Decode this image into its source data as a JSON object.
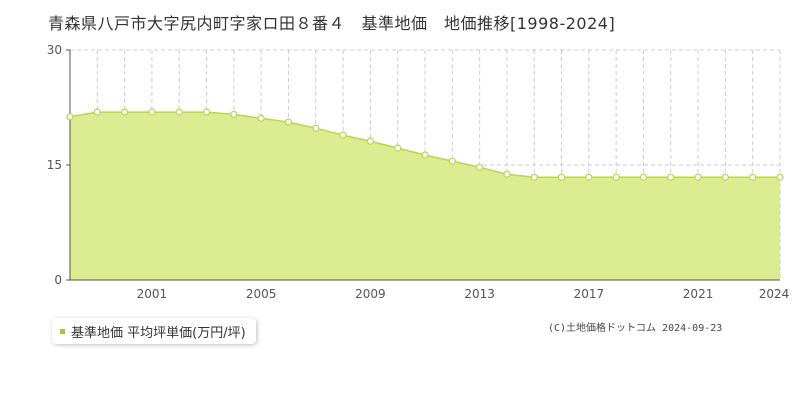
{
  "chart_data": {
    "type": "area",
    "title": "青森県八戸市大字尻内町字家ロ田８番４　基準地価　地価推移[1998-2024]",
    "x": [
      1998,
      1999,
      2000,
      2001,
      2002,
      2003,
      2004,
      2005,
      2006,
      2007,
      2008,
      2009,
      2010,
      2011,
      2012,
      2013,
      2014,
      2015,
      2016,
      2017,
      2018,
      2019,
      2020,
      2021,
      2022,
      2023,
      2024
    ],
    "series": [
      {
        "name": "基準地価 平均坪単価(万円/坪)",
        "values": [
          21.3,
          21.9,
          21.9,
          21.9,
          21.9,
          21.9,
          21.6,
          21.1,
          20.6,
          19.8,
          18.9,
          18.1,
          17.2,
          16.3,
          15.5,
          14.7,
          13.8,
          13.4,
          13.4,
          13.4,
          13.4,
          13.4,
          13.4,
          13.4,
          13.4,
          13.4,
          13.4
        ]
      }
    ],
    "xticks": [
      "2001",
      "2005",
      "2009",
      "2013",
      "2017",
      "2021",
      "2024"
    ],
    "yticks": [
      "0",
      "15",
      "30"
    ],
    "ylim": [
      0,
      30
    ],
    "xlim": [
      1998,
      2024
    ],
    "grid": true,
    "legend_position": "bottom-left",
    "colors": {
      "fill": "#dcec90",
      "line": "#b5d94a",
      "marker_stroke": "#b5d94a",
      "marker_fill": "#ffffff",
      "legend_swatch": "#9ccc3c"
    }
  },
  "legend_label": "基準地価 平均坪単価(万円/坪)",
  "credit": "(C)土地価格ドットコム 2024-09-23"
}
